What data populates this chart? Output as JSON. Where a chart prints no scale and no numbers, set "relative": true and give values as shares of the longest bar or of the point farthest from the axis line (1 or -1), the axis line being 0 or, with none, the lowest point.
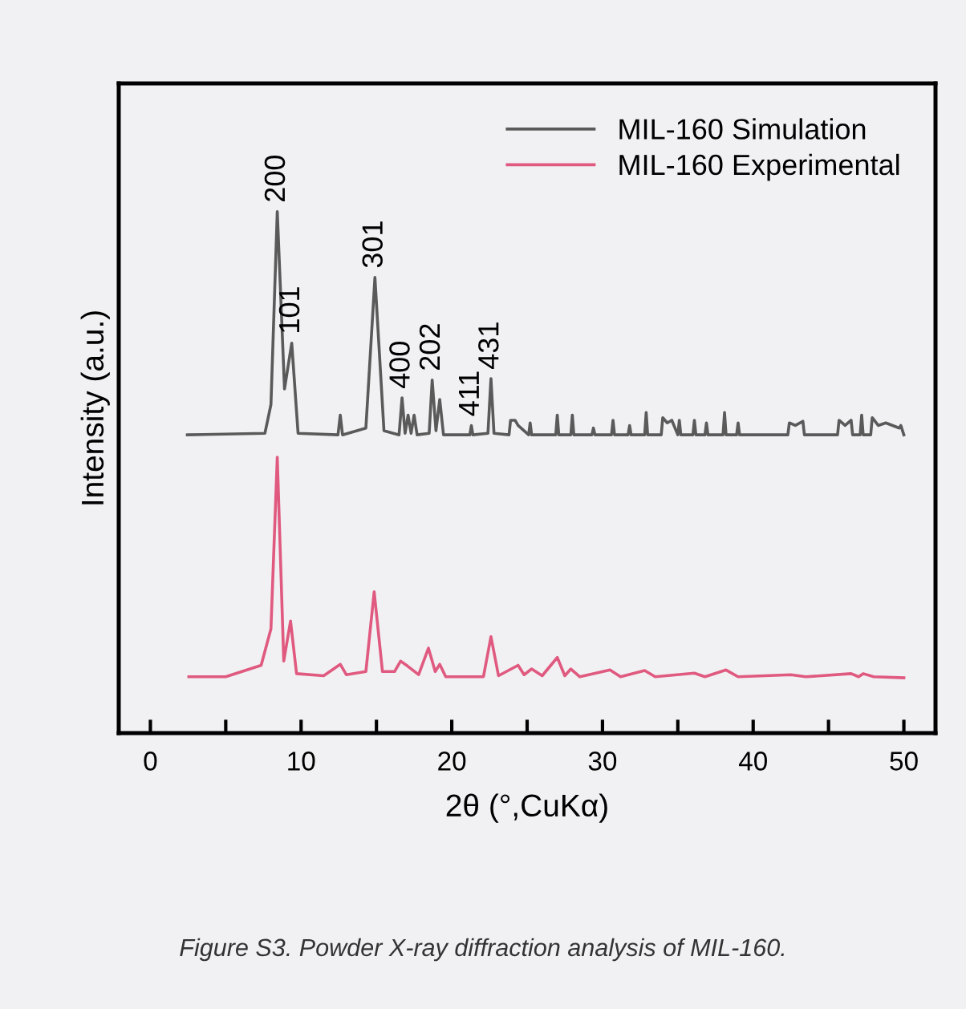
{
  "chart_data": {
    "type": "line",
    "relative": true,
    "xlabel": "2θ (°,CuKα)",
    "ylabel": "Intensity (a.u.)",
    "xlim": [
      -2.1,
      52.1
    ],
    "xticks": [
      0,
      {
        "value": 5,
        "label": null
      },
      10,
      {
        "value": 15,
        "label": null
      },
      20,
      {
        "value": 25,
        "label": null
      },
      30,
      {
        "value": 35,
        "label": null
      },
      40,
      {
        "value": 45,
        "label": null
      },
      50
    ],
    "tick_labels": "x",
    "legend": "top right",
    "grid": false,
    "marker": "none",
    "line_style": "solid",
    "series": [
      {
        "name": "MIL-160 Simulation",
        "color": "#5a5a5a",
        "x": [
          2.45,
          7.6,
          8.0,
          8.42,
          8.9,
          9.38,
          9.8,
          12.45,
          12.6,
          12.75,
          14.3,
          14.9,
          15.5,
          16.5,
          16.7,
          16.9,
          17.1,
          17.3,
          17.5,
          17.7,
          18.5,
          18.7,
          18.95,
          19.2,
          19.45,
          21.2,
          21.3,
          21.4,
          22.4,
          22.6,
          22.8,
          23.8,
          23.9,
          24.2,
          24.4,
          25.1,
          25.2,
          25.3,
          26.9,
          27.0,
          27.1,
          27.9,
          28.0,
          28.1,
          29.3,
          29.4,
          29.5,
          30.6,
          30.7,
          30.8,
          31.7,
          31.8,
          31.9,
          32.8,
          32.9,
          33.0,
          33.9,
          34.0,
          34.3,
          34.6,
          35.0,
          35.1,
          35.2,
          36.0,
          36.1,
          36.2,
          36.8,
          36.9,
          37.0,
          38.0,
          38.1,
          38.2,
          38.9,
          39.0,
          39.1,
          42.3,
          42.4,
          42.8,
          43.3,
          43.4,
          45.6,
          45.7,
          46.1,
          46.5,
          46.6,
          47.1,
          47.2,
          47.3,
          47.8,
          47.9,
          48.3,
          48.8,
          49.7,
          49.8,
          50.0
        ],
        "values": [
          0.572,
          0.575,
          0.63,
          1.0,
          0.66,
          0.748,
          0.575,
          0.572,
          0.61,
          0.572,
          0.585,
          0.874,
          0.58,
          0.572,
          0.643,
          0.575,
          0.61,
          0.575,
          0.61,
          0.572,
          0.575,
          0.677,
          0.58,
          0.64,
          0.572,
          0.572,
          0.59,
          0.572,
          0.575,
          0.68,
          0.575,
          0.572,
          0.6,
          0.6,
          0.59,
          0.572,
          0.595,
          0.572,
          0.572,
          0.61,
          0.572,
          0.572,
          0.61,
          0.572,
          0.572,
          0.585,
          0.572,
          0.572,
          0.6,
          0.572,
          0.572,
          0.59,
          0.572,
          0.572,
          0.615,
          0.572,
          0.572,
          0.605,
          0.595,
          0.6,
          0.572,
          0.6,
          0.572,
          0.572,
          0.6,
          0.572,
          0.572,
          0.595,
          0.572,
          0.572,
          0.615,
          0.572,
          0.572,
          0.595,
          0.572,
          0.572,
          0.595,
          0.59,
          0.598,
          0.572,
          0.572,
          0.6,
          0.59,
          0.6,
          0.572,
          0.572,
          0.61,
          0.572,
          0.572,
          0.605,
          0.59,
          0.595,
          0.585,
          0.59,
          0.572
        ]
      },
      {
        "name": "MIL-160 Experimental",
        "color": "#e05a80",
        "x": [
          2.55,
          5.0,
          7.35,
          8.0,
          8.42,
          8.85,
          9.3,
          9.7,
          11.5,
          12.6,
          13.0,
          14.3,
          14.85,
          15.4,
          16.2,
          16.6,
          17.0,
          17.8,
          18.45,
          18.9,
          19.2,
          19.6,
          22.1,
          22.6,
          23.1,
          24.4,
          24.8,
          25.3,
          26.0,
          27.0,
          27.5,
          27.9,
          28.5,
          30.5,
          31.2,
          32.8,
          33.5,
          36.1,
          36.8,
          38.2,
          39.0,
          42.5,
          43.5,
          46.5,
          47.0,
          47.3,
          48.0,
          50.0
        ],
        "values": [
          0.108,
          0.108,
          0.13,
          0.2,
          0.529,
          0.138,
          0.215,
          0.114,
          0.11,
          0.132,
          0.112,
          0.118,
          0.271,
          0.118,
          0.118,
          0.138,
          0.13,
          0.112,
          0.163,
          0.118,
          0.132,
          0.108,
          0.108,
          0.185,
          0.11,
          0.13,
          0.112,
          0.123,
          0.11,
          0.145,
          0.11,
          0.123,
          0.108,
          0.121,
          0.108,
          0.12,
          0.108,
          0.115,
          0.108,
          0.121,
          0.108,
          0.112,
          0.108,
          0.114,
          0.108,
          0.114,
          0.108,
          0.106
        ]
      }
    ],
    "annotations": [
      {
        "text": "200",
        "x": 8.42,
        "y": 1.0
      },
      {
        "text": "101",
        "x": 9.38,
        "y": 0.748
      },
      {
        "text": "301",
        "x": 14.9,
        "y": 0.874
      },
      {
        "text": "400",
        "x": 16.7,
        "y": 0.643
      },
      {
        "text": "202",
        "x": 18.7,
        "y": 0.677
      },
      {
        "text": "411",
        "x": 21.3,
        "y": 0.59
      },
      {
        "text": "431",
        "x": 22.6,
        "y": 0.68
      },
      "Figure S3. Powder X-ray diffraction analysis of MIL-160."
    ]
  }
}
